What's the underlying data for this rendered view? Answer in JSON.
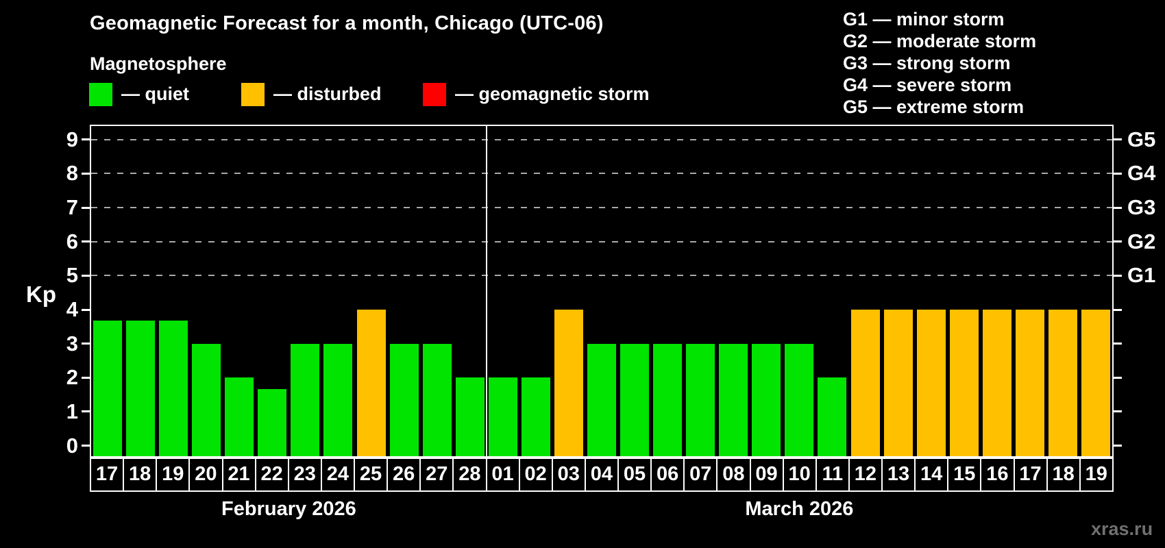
{
  "header": {
    "title": "Geomagnetic Forecast for a month, Chicago (UTC-06)",
    "subtitle": "Magnetosphere"
  },
  "legend": {
    "items": [
      {
        "label": "— quiet",
        "status": "quiet"
      },
      {
        "label": "— disturbed",
        "status": "disturbed"
      },
      {
        "label": "— geomagnetic storm",
        "status": "storm"
      }
    ]
  },
  "g_scale_legend": {
    "items": [
      {
        "code": "G1",
        "label": "G1 — minor storm"
      },
      {
        "code": "G2",
        "label": "G2 — moderate storm"
      },
      {
        "code": "G3",
        "label": "G3 — strong storm"
      },
      {
        "code": "G4",
        "label": "G4 — severe storm"
      },
      {
        "code": "G5",
        "label": "G5 — extreme storm"
      }
    ]
  },
  "colors": {
    "quiet": "#00E400",
    "disturbed": "#FFC000",
    "storm": "#FF0000",
    "background": "#000000",
    "axis": "#FFFFFF",
    "gridline": "#AAAAAA",
    "watermark": "#707070"
  },
  "watermark": "xras.ru",
  "chart_data": {
    "type": "bar",
    "title": "Geomagnetic Forecast for a month, Chicago (UTC-06)",
    "ylabel": "Kp",
    "yticks": [
      0,
      1,
      2,
      3,
      4,
      5,
      6,
      7,
      8,
      9
    ],
    "ylim": [
      -0.31,
      9.4
    ],
    "gridlines_at": [
      5,
      6,
      7,
      8,
      9
    ],
    "grid": "dashed horizontal at G-storm levels only",
    "legend_position": "top",
    "right_axis": [
      {
        "kp": 5,
        "label": "G1"
      },
      {
        "kp": 6,
        "label": "G2"
      },
      {
        "kp": 7,
        "label": "G3"
      },
      {
        "kp": 8,
        "label": "G4"
      },
      {
        "kp": 9,
        "label": "G5"
      }
    ],
    "months": [
      {
        "label": "February 2026",
        "key": "feb",
        "bars": [
          {
            "day": "17",
            "kp": 3.67,
            "status": "quiet"
          },
          {
            "day": "18",
            "kp": 3.67,
            "status": "quiet"
          },
          {
            "day": "19",
            "kp": 3.67,
            "status": "quiet"
          },
          {
            "day": "20",
            "kp": 3,
            "status": "quiet"
          },
          {
            "day": "21",
            "kp": 2,
            "status": "quiet"
          },
          {
            "day": "22",
            "kp": 1.67,
            "status": "quiet"
          },
          {
            "day": "23",
            "kp": 3,
            "status": "quiet"
          },
          {
            "day": "24",
            "kp": 3,
            "status": "quiet"
          },
          {
            "day": "25",
            "kp": 4,
            "status": "disturbed"
          },
          {
            "day": "26",
            "kp": 3,
            "status": "quiet"
          },
          {
            "day": "27",
            "kp": 3,
            "status": "quiet"
          },
          {
            "day": "28",
            "kp": 2,
            "status": "quiet"
          }
        ]
      },
      {
        "label": "March 2026",
        "key": "mar",
        "bars": [
          {
            "day": "01",
            "kp": 2,
            "status": "quiet"
          },
          {
            "day": "02",
            "kp": 2,
            "status": "quiet"
          },
          {
            "day": "03",
            "kp": 4,
            "status": "disturbed"
          },
          {
            "day": "04",
            "kp": 3,
            "status": "quiet"
          },
          {
            "day": "05",
            "kp": 3,
            "status": "quiet"
          },
          {
            "day": "06",
            "kp": 3,
            "status": "quiet"
          },
          {
            "day": "07",
            "kp": 3,
            "status": "quiet"
          },
          {
            "day": "08",
            "kp": 3,
            "status": "quiet"
          },
          {
            "day": "09",
            "kp": 3,
            "status": "quiet"
          },
          {
            "day": "10",
            "kp": 3,
            "status": "quiet"
          },
          {
            "day": "11",
            "kp": 2,
            "status": "quiet"
          },
          {
            "day": "12",
            "kp": 4,
            "status": "disturbed"
          },
          {
            "day": "13",
            "kp": 4,
            "status": "disturbed"
          },
          {
            "day": "14",
            "kp": 4,
            "status": "disturbed"
          },
          {
            "day": "15",
            "kp": 4,
            "status": "disturbed"
          },
          {
            "day": "16",
            "kp": 4,
            "status": "disturbed"
          },
          {
            "day": "17",
            "kp": 4,
            "status": "disturbed"
          },
          {
            "day": "18",
            "kp": 4,
            "status": "disturbed"
          },
          {
            "day": "19",
            "kp": 4,
            "status": "disturbed"
          }
        ]
      }
    ]
  }
}
